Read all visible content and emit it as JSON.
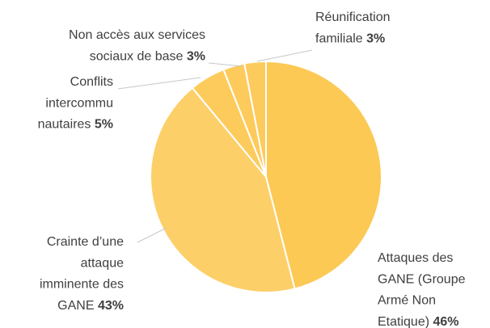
{
  "chart_data": {
    "type": "pie",
    "categories": [
      [
        "Attaques des",
        "GANE (Groupe",
        "Armé Non",
        "Etatique)"
      ],
      [
        "Crainte d’une",
        "attaque",
        "imminente des",
        "GANE"
      ],
      [
        "Conflits",
        "intercommu",
        "nautaires"
      ],
      [
        "Non accès aux services",
        "sociaux de base"
      ],
      [
        "Réunification",
        "familiale"
      ]
    ],
    "values": [
      46,
      43,
      5,
      3,
      3
    ],
    "value_labels": [
      "46%",
      "43%",
      "5%",
      "3%",
      "3%"
    ],
    "colors": [
      "#fcc955",
      "#fdcf68",
      "#fdcb5c",
      "#fdcb5c",
      "#fdcb5c"
    ]
  }
}
